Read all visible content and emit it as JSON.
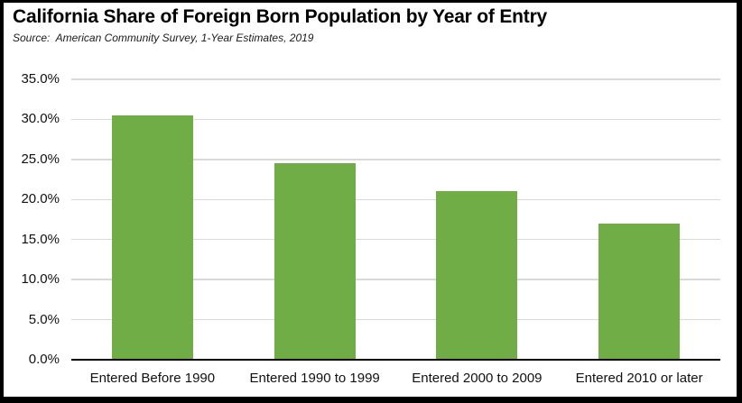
{
  "chart_data": {
    "type": "bar",
    "title": "California Share of Foreign Born Population by Year of Entry",
    "source": "Source:  American Community Survey, 1-Year Estimates, 2019",
    "categories": [
      "Entered Before 1990",
      "Entered 1990 to 1999",
      "Entered 2000 to 2009",
      "Entered 2010 or later"
    ],
    "values": [
      30.5,
      24.5,
      21.0,
      17.0
    ],
    "unit": "%",
    "xlabel": "",
    "ylabel": "",
    "ylim": [
      0,
      35
    ],
    "ytick_step": 5,
    "ytick_labels": [
      "0.0%",
      "5.0%",
      "10.0%",
      "15.0%",
      "20.0%",
      "25.0%",
      "30.0%",
      "35.0%"
    ],
    "grid": true,
    "legend": "none",
    "colors": {
      "bar": "#70AD47",
      "gridline": "#D9D9D9",
      "axis": "#000000",
      "text": "#111111",
      "background": "#FFFFFF",
      "border": "#000000"
    }
  }
}
